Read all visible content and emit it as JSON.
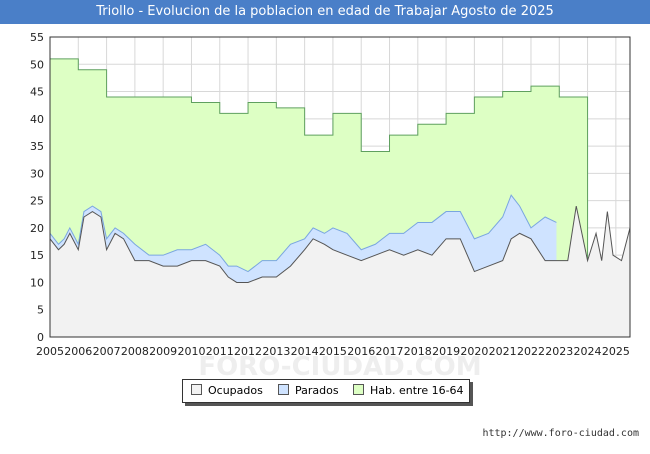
{
  "title": "Triollo - Evolucion de la poblacion en edad de Trabajar Agosto de 2025",
  "footer_url": "http://www.foro-ciudad.com",
  "watermark": "FORO-CIUDAD.COM",
  "legend": [
    {
      "label": "Ocupados",
      "color": "#f2f2f2"
    },
    {
      "label": "Parados",
      "color": "#cfe3ff"
    },
    {
      "label": "Hab. entre 16-64",
      "color": "#ddffc4"
    }
  ],
  "chart_data": {
    "type": "area",
    "title": "Triollo - Evolucion de la poblacion en edad de Trabajar Agosto de 2025",
    "ylim": [
      0,
      55
    ],
    "yticks": [
      0,
      5,
      10,
      15,
      20,
      25,
      30,
      35,
      40,
      45,
      50,
      55
    ],
    "xlim": [
      2005,
      2025.5
    ],
    "xticks": [
      2005,
      2006,
      2007,
      2008,
      2009,
      2010,
      2011,
      2012,
      2013,
      2014,
      2015,
      2016,
      2017,
      2018,
      2019,
      2020,
      2021,
      2022,
      2023,
      2024,
      2025
    ],
    "grid": true,
    "legend_position": "bottom",
    "series": [
      {
        "name": "Hab. entre 16-64",
        "color": "#ddffc4",
        "line": "#5fa05f",
        "step": true,
        "points": [
          [
            2005,
            51
          ],
          [
            2006,
            49
          ],
          [
            2007,
            44
          ],
          [
            2008,
            44
          ],
          [
            2009,
            44
          ],
          [
            2010,
            43
          ],
          [
            2011,
            41
          ],
          [
            2012,
            43
          ],
          [
            2013,
            42
          ],
          [
            2014,
            37
          ],
          [
            2015,
            41
          ],
          [
            2016,
            34
          ],
          [
            2017,
            37
          ],
          [
            2018,
            39
          ],
          [
            2019,
            41
          ],
          [
            2020,
            44
          ],
          [
            2021,
            45
          ],
          [
            2022,
            46
          ],
          [
            2023,
            44
          ],
          [
            2024,
            null
          ]
        ]
      },
      {
        "name": "Parados",
        "color": "#cfe3ff",
        "line": "#7aa6e0",
        "points": [
          [
            2005,
            19
          ],
          [
            2005.3,
            17
          ],
          [
            2005.5,
            18
          ],
          [
            2005.7,
            20
          ],
          [
            2006,
            17
          ],
          [
            2006.2,
            23
          ],
          [
            2006.5,
            24
          ],
          [
            2006.8,
            23
          ],
          [
            2007,
            18
          ],
          [
            2007.3,
            20
          ],
          [
            2007.6,
            19
          ],
          [
            2008,
            17
          ],
          [
            2008.5,
            15
          ],
          [
            2009,
            15
          ],
          [
            2009.5,
            16
          ],
          [
            2010,
            16
          ],
          [
            2010.5,
            17
          ],
          [
            2011,
            15
          ],
          [
            2011.3,
            13
          ],
          [
            2011.6,
            13
          ],
          [
            2012,
            12
          ],
          [
            2012.5,
            14
          ],
          [
            2013,
            14
          ],
          [
            2013.5,
            17
          ],
          [
            2014,
            18
          ],
          [
            2014.3,
            20
          ],
          [
            2014.7,
            19
          ],
          [
            2015,
            20
          ],
          [
            2015.5,
            19
          ],
          [
            2016,
            16
          ],
          [
            2016.5,
            17
          ],
          [
            2017,
            19
          ],
          [
            2017.5,
            19
          ],
          [
            2018,
            21
          ],
          [
            2018.5,
            21
          ],
          [
            2019,
            23
          ],
          [
            2019.5,
            23
          ],
          [
            2020,
            18
          ],
          [
            2020.5,
            19
          ],
          [
            2021,
            22
          ],
          [
            2021.3,
            26
          ],
          [
            2021.6,
            24
          ],
          [
            2022,
            20
          ],
          [
            2022.5,
            22
          ],
          [
            2022.9,
            21
          ]
        ]
      },
      {
        "name": "Ocupados",
        "color": "#f2f2f2",
        "line": "#555555",
        "points": [
          [
            2005,
            18
          ],
          [
            2005.3,
            16
          ],
          [
            2005.5,
            17
          ],
          [
            2005.7,
            19
          ],
          [
            2006,
            16
          ],
          [
            2006.2,
            22
          ],
          [
            2006.5,
            23
          ],
          [
            2006.8,
            22
          ],
          [
            2007,
            16
          ],
          [
            2007.3,
            19
          ],
          [
            2007.6,
            18
          ],
          [
            2008,
            14
          ],
          [
            2008.5,
            14
          ],
          [
            2009,
            13
          ],
          [
            2009.5,
            13
          ],
          [
            2010,
            14
          ],
          [
            2010.5,
            14
          ],
          [
            2011,
            13
          ],
          [
            2011.3,
            11
          ],
          [
            2011.6,
            10
          ],
          [
            2012,
            10
          ],
          [
            2012.5,
            11
          ],
          [
            2013,
            11
          ],
          [
            2013.5,
            13
          ],
          [
            2014,
            16
          ],
          [
            2014.3,
            18
          ],
          [
            2014.7,
            17
          ],
          [
            2015,
            16
          ],
          [
            2015.5,
            15
          ],
          [
            2016,
            14
          ],
          [
            2016.5,
            15
          ],
          [
            2017,
            16
          ],
          [
            2017.5,
            15
          ],
          [
            2018,
            16
          ],
          [
            2018.5,
            15
          ],
          [
            2019,
            18
          ],
          [
            2019.5,
            18
          ],
          [
            2020,
            12
          ],
          [
            2020.5,
            13
          ],
          [
            2021,
            14
          ],
          [
            2021.3,
            18
          ],
          [
            2021.6,
            19
          ],
          [
            2022,
            18
          ],
          [
            2022.5,
            14
          ],
          [
            2022.9,
            14
          ],
          [
            2023.3,
            14
          ],
          [
            2023.6,
            24
          ],
          [
            2023.8,
            19
          ],
          [
            2024,
            14
          ],
          [
            2024.3,
            19
          ],
          [
            2024.5,
            14
          ],
          [
            2024.7,
            23
          ],
          [
            2024.9,
            15
          ],
          [
            2025.2,
            14
          ],
          [
            2025.5,
            20
          ]
        ]
      }
    ]
  }
}
